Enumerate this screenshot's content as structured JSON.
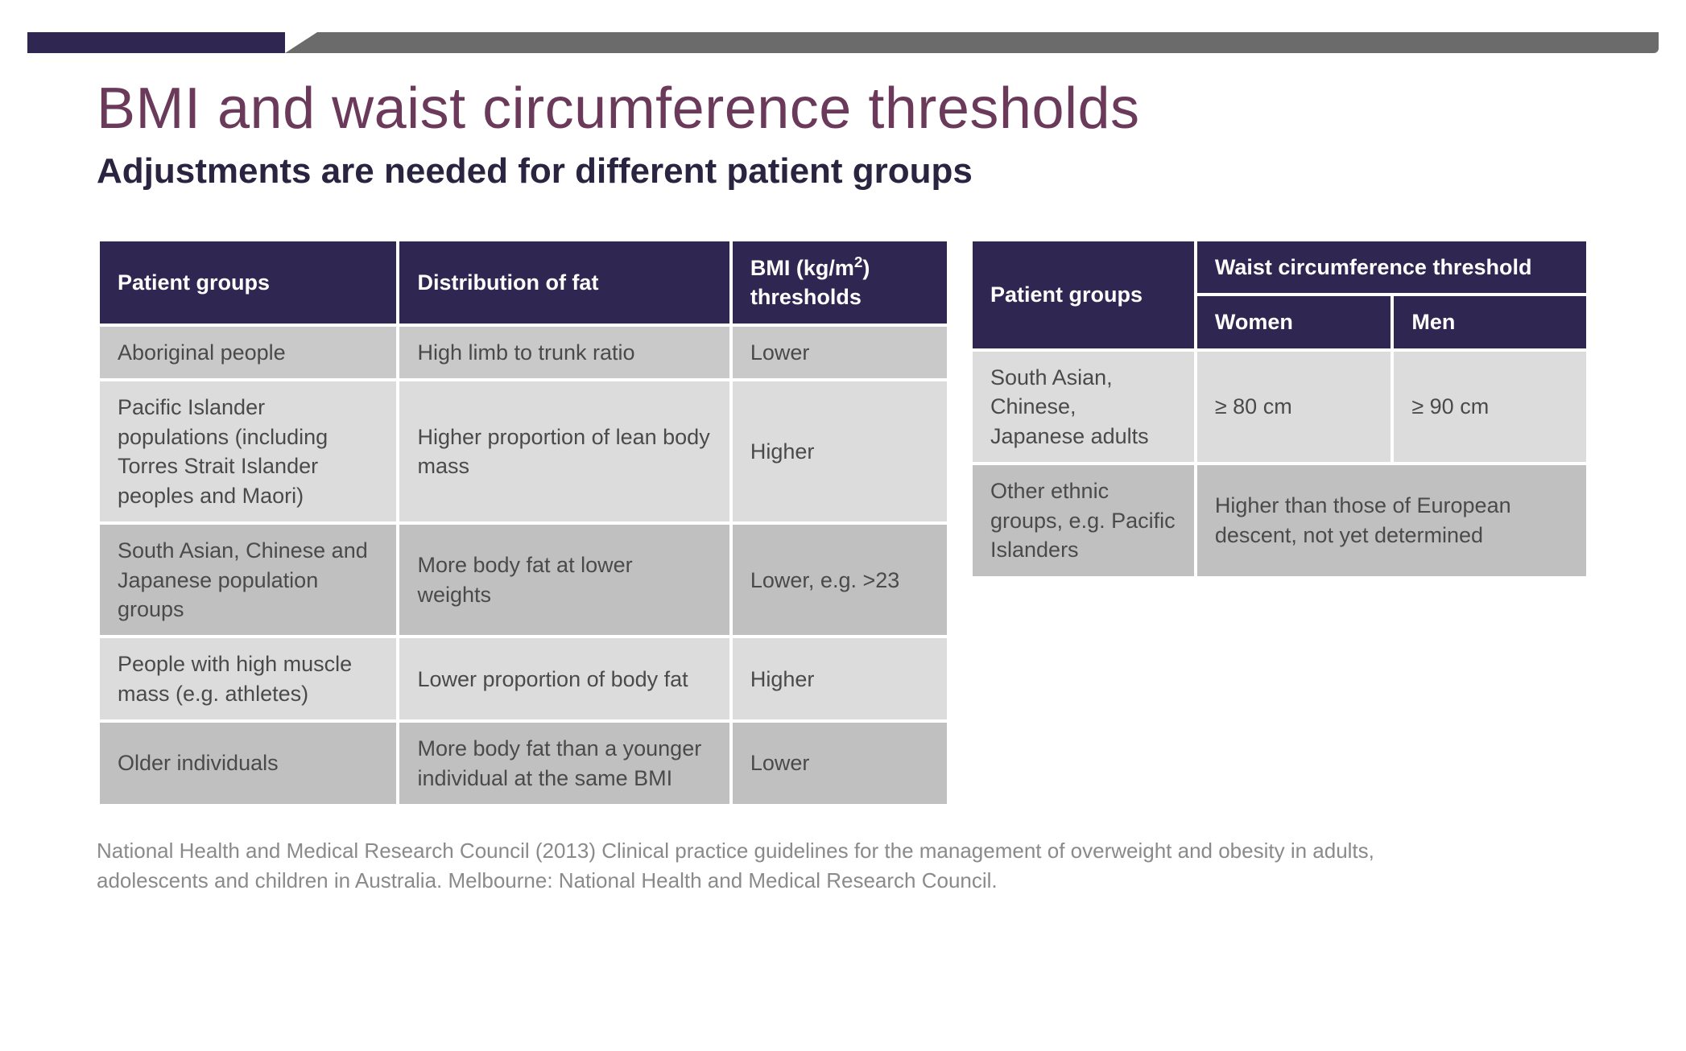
{
  "title": "BMI and waist circumference thresholds",
  "subtitle": "Adjustments are needed for different patient groups",
  "colors": {
    "title": "#6b3a5a",
    "subtitle": "#2a2440",
    "table_header_bg": "#2f2752",
    "table_header_fg": "#ffffff",
    "row_shade_a": "#c9c9c9",
    "row_shade_b": "#dcdcdc",
    "row_shade_c": "#c0c0c0",
    "body_text": "#4a4a4a",
    "footnote": "#8a8a8a",
    "background": "#ffffff",
    "top_bar": "#6b6b6b",
    "top_bar_accent": "#2f2752"
  },
  "table1": {
    "columns": [
      "Patient groups",
      "Distribution of fat",
      "BMI (kg/m²) thresholds"
    ],
    "rows": [
      {
        "shade": "a",
        "cells": [
          "Aboriginal people",
          "High limb to trunk ratio",
          "Lower"
        ]
      },
      {
        "shade": "b",
        "cells": [
          "Pacific Islander populations (including Torres Strait Islander peoples and Maori)",
          "Higher proportion of lean body mass",
          "Higher"
        ]
      },
      {
        "shade": "c",
        "cells": [
          "South Asian, Chinese and Japanese population groups",
          "More body fat at lower weights",
          "Lower, e.g. >23"
        ]
      },
      {
        "shade": "b",
        "cells": [
          "People with high muscle mass (e.g. athletes)",
          "Lower proportion of body fat",
          "Higher"
        ]
      },
      {
        "shade": "c",
        "cells": [
          "Older individuals",
          "More body fat than a younger individual at the same BMI",
          "Lower"
        ]
      }
    ]
  },
  "table2": {
    "header": {
      "patient_groups": "Patient groups",
      "wc_threshold": "Waist circumference threshold",
      "women": "Women",
      "men": "Men"
    },
    "rows": [
      {
        "shade": "b",
        "group": "South Asian, Chinese, Japanese adults",
        "women": "≥ 80 cm",
        "men": "≥ 90 cm",
        "span": false
      },
      {
        "shade": "c",
        "group": "Other ethnic groups, e.g. Pacific Islanders",
        "combined": "Higher than those of European descent, not yet determined",
        "span": true
      }
    ]
  },
  "footnote": "National Health and Medical Research Council (2013) Clinical practice guidelines for the management of overweight and obesity in adults, adolescents and children in Australia. Melbourne: National Health and Medical Research Council."
}
